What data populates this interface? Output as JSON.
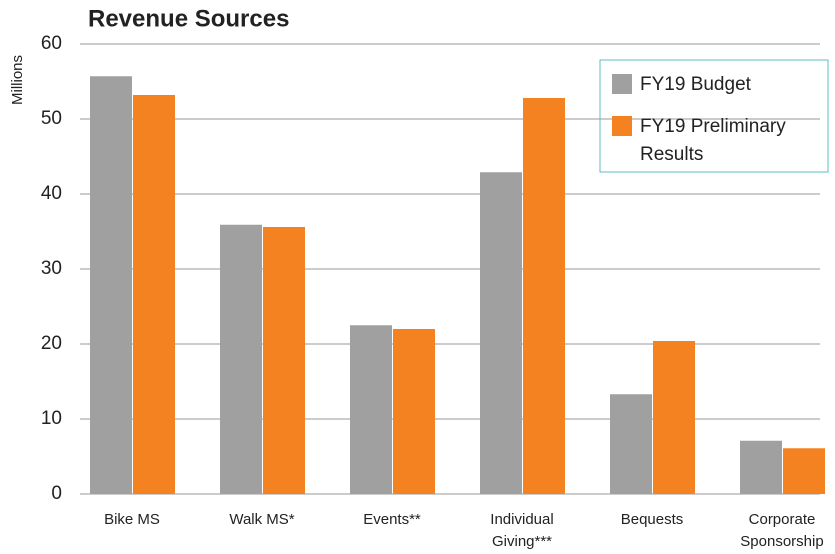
{
  "chart_data": {
    "type": "bar",
    "title": "Revenue Sources",
    "y_label": "Millions",
    "categories": [
      "Bike MS",
      "Walk MS*",
      "Events**",
      "Individual\nGiving***",
      "Bequests",
      "Corporate\nSponsorship"
    ],
    "series": [
      {
        "name": "FY19 Budget",
        "color": "#a0a0a0",
        "values": [
          55.7,
          35.9,
          22.5,
          42.9,
          13.3,
          7.1
        ]
      },
      {
        "name": "FY19 Preliminary\nResults",
        "color": "#f58220",
        "values": [
          53.2,
          35.6,
          22.0,
          52.8,
          20.4,
          6.1
        ]
      }
    ],
    "ylim": [
      0,
      60
    ],
    "yticks": [
      0,
      10,
      20,
      30,
      40,
      50,
      60
    ],
    "grid": true,
    "legend": "upper right"
  }
}
